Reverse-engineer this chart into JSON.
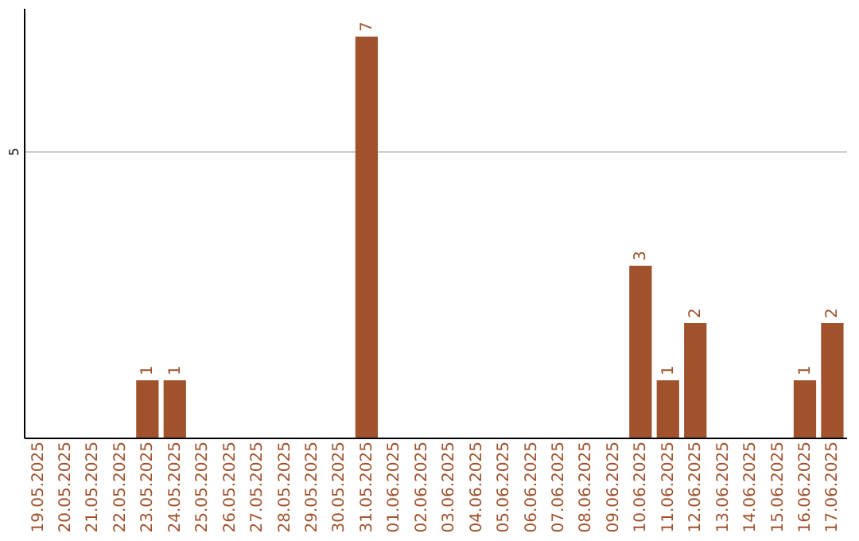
{
  "chart_data": {
    "type": "bar",
    "categories": [
      "19.05.2025",
      "20.05.2025",
      "21.05.2025",
      "22.05.2025",
      "23.05.2025",
      "24.05.2025",
      "25.05.2025",
      "26.05.2025",
      "27.05.2025",
      "28.05.2025",
      "29.05.2025",
      "30.05.2025",
      "31.05.2025",
      "01.06.2025",
      "02.06.2025",
      "03.06.2025",
      "04.06.2025",
      "05.06.2025",
      "06.06.2025",
      "07.06.2025",
      "08.06.2025",
      "09.06.2025",
      "10.06.2025",
      "11.06.2025",
      "12.06.2025",
      "13.06.2025",
      "14.06.2025",
      "15.06.2025",
      "16.06.2025",
      "17.06.2025"
    ],
    "values": [
      0,
      0,
      0,
      0,
      1,
      1,
      0,
      0,
      0,
      0,
      0,
      0,
      7,
      0,
      0,
      0,
      0,
      0,
      0,
      0,
      0,
      0,
      3,
      1,
      2,
      0,
      0,
      0,
      1,
      2
    ],
    "value_labels": [
      null,
      null,
      null,
      null,
      "1",
      "1",
      null,
      null,
      null,
      null,
      null,
      null,
      "7",
      null,
      null,
      null,
      null,
      null,
      null,
      null,
      null,
      null,
      "3",
      "1",
      "2",
      null,
      null,
      null,
      "1",
      "2"
    ],
    "color": "#a0522d",
    "ylim": [
      0,
      7.5
    ],
    "yticks": [
      5
    ],
    "grid": "y"
  }
}
